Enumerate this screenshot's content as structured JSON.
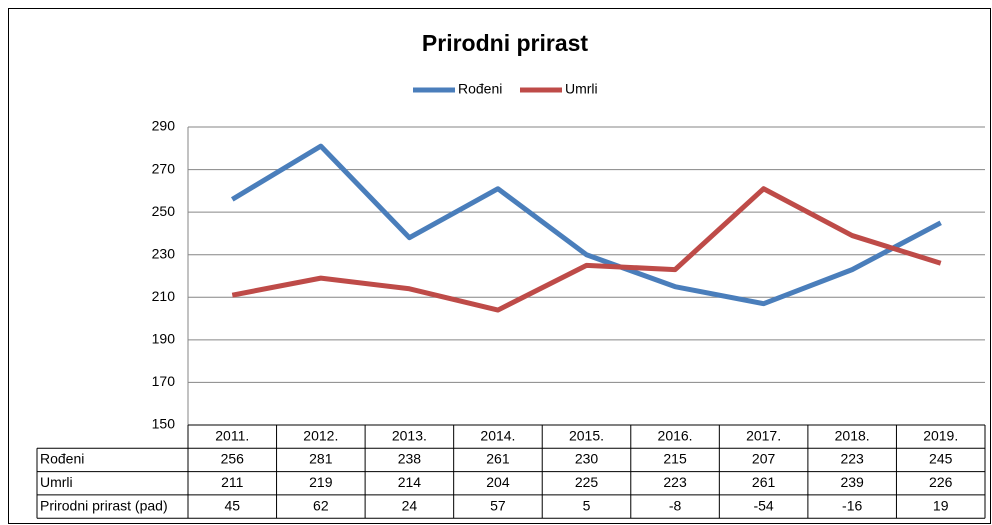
{
  "chart_data": {
    "type": "line",
    "title": "Prirodni prirast",
    "categories": [
      "2011.",
      "2012.",
      "2013.",
      "2014.",
      "2015.",
      "2016.",
      "2017.",
      "2018.",
      "2019."
    ],
    "series": [
      {
        "name": "Rođeni",
        "color": "#4a7ebb",
        "values": [
          256,
          281,
          238,
          261,
          230,
          215,
          207,
          223,
          245
        ]
      },
      {
        "name": "Umrli",
        "color": "#be4b48",
        "values": [
          211,
          219,
          214,
          204,
          225,
          223,
          261,
          239,
          226
        ]
      }
    ],
    "data_table": [
      {
        "name": "Prirodni prirast (pad)",
        "values": [
          45,
          62,
          24,
          57,
          5,
          -8,
          -54,
          -16,
          19
        ]
      }
    ],
    "ylim": [
      150,
      290
    ],
    "yticks": [
      150,
      170,
      190,
      210,
      230,
      250,
      270,
      290
    ],
    "grid": true,
    "legend": "top"
  }
}
